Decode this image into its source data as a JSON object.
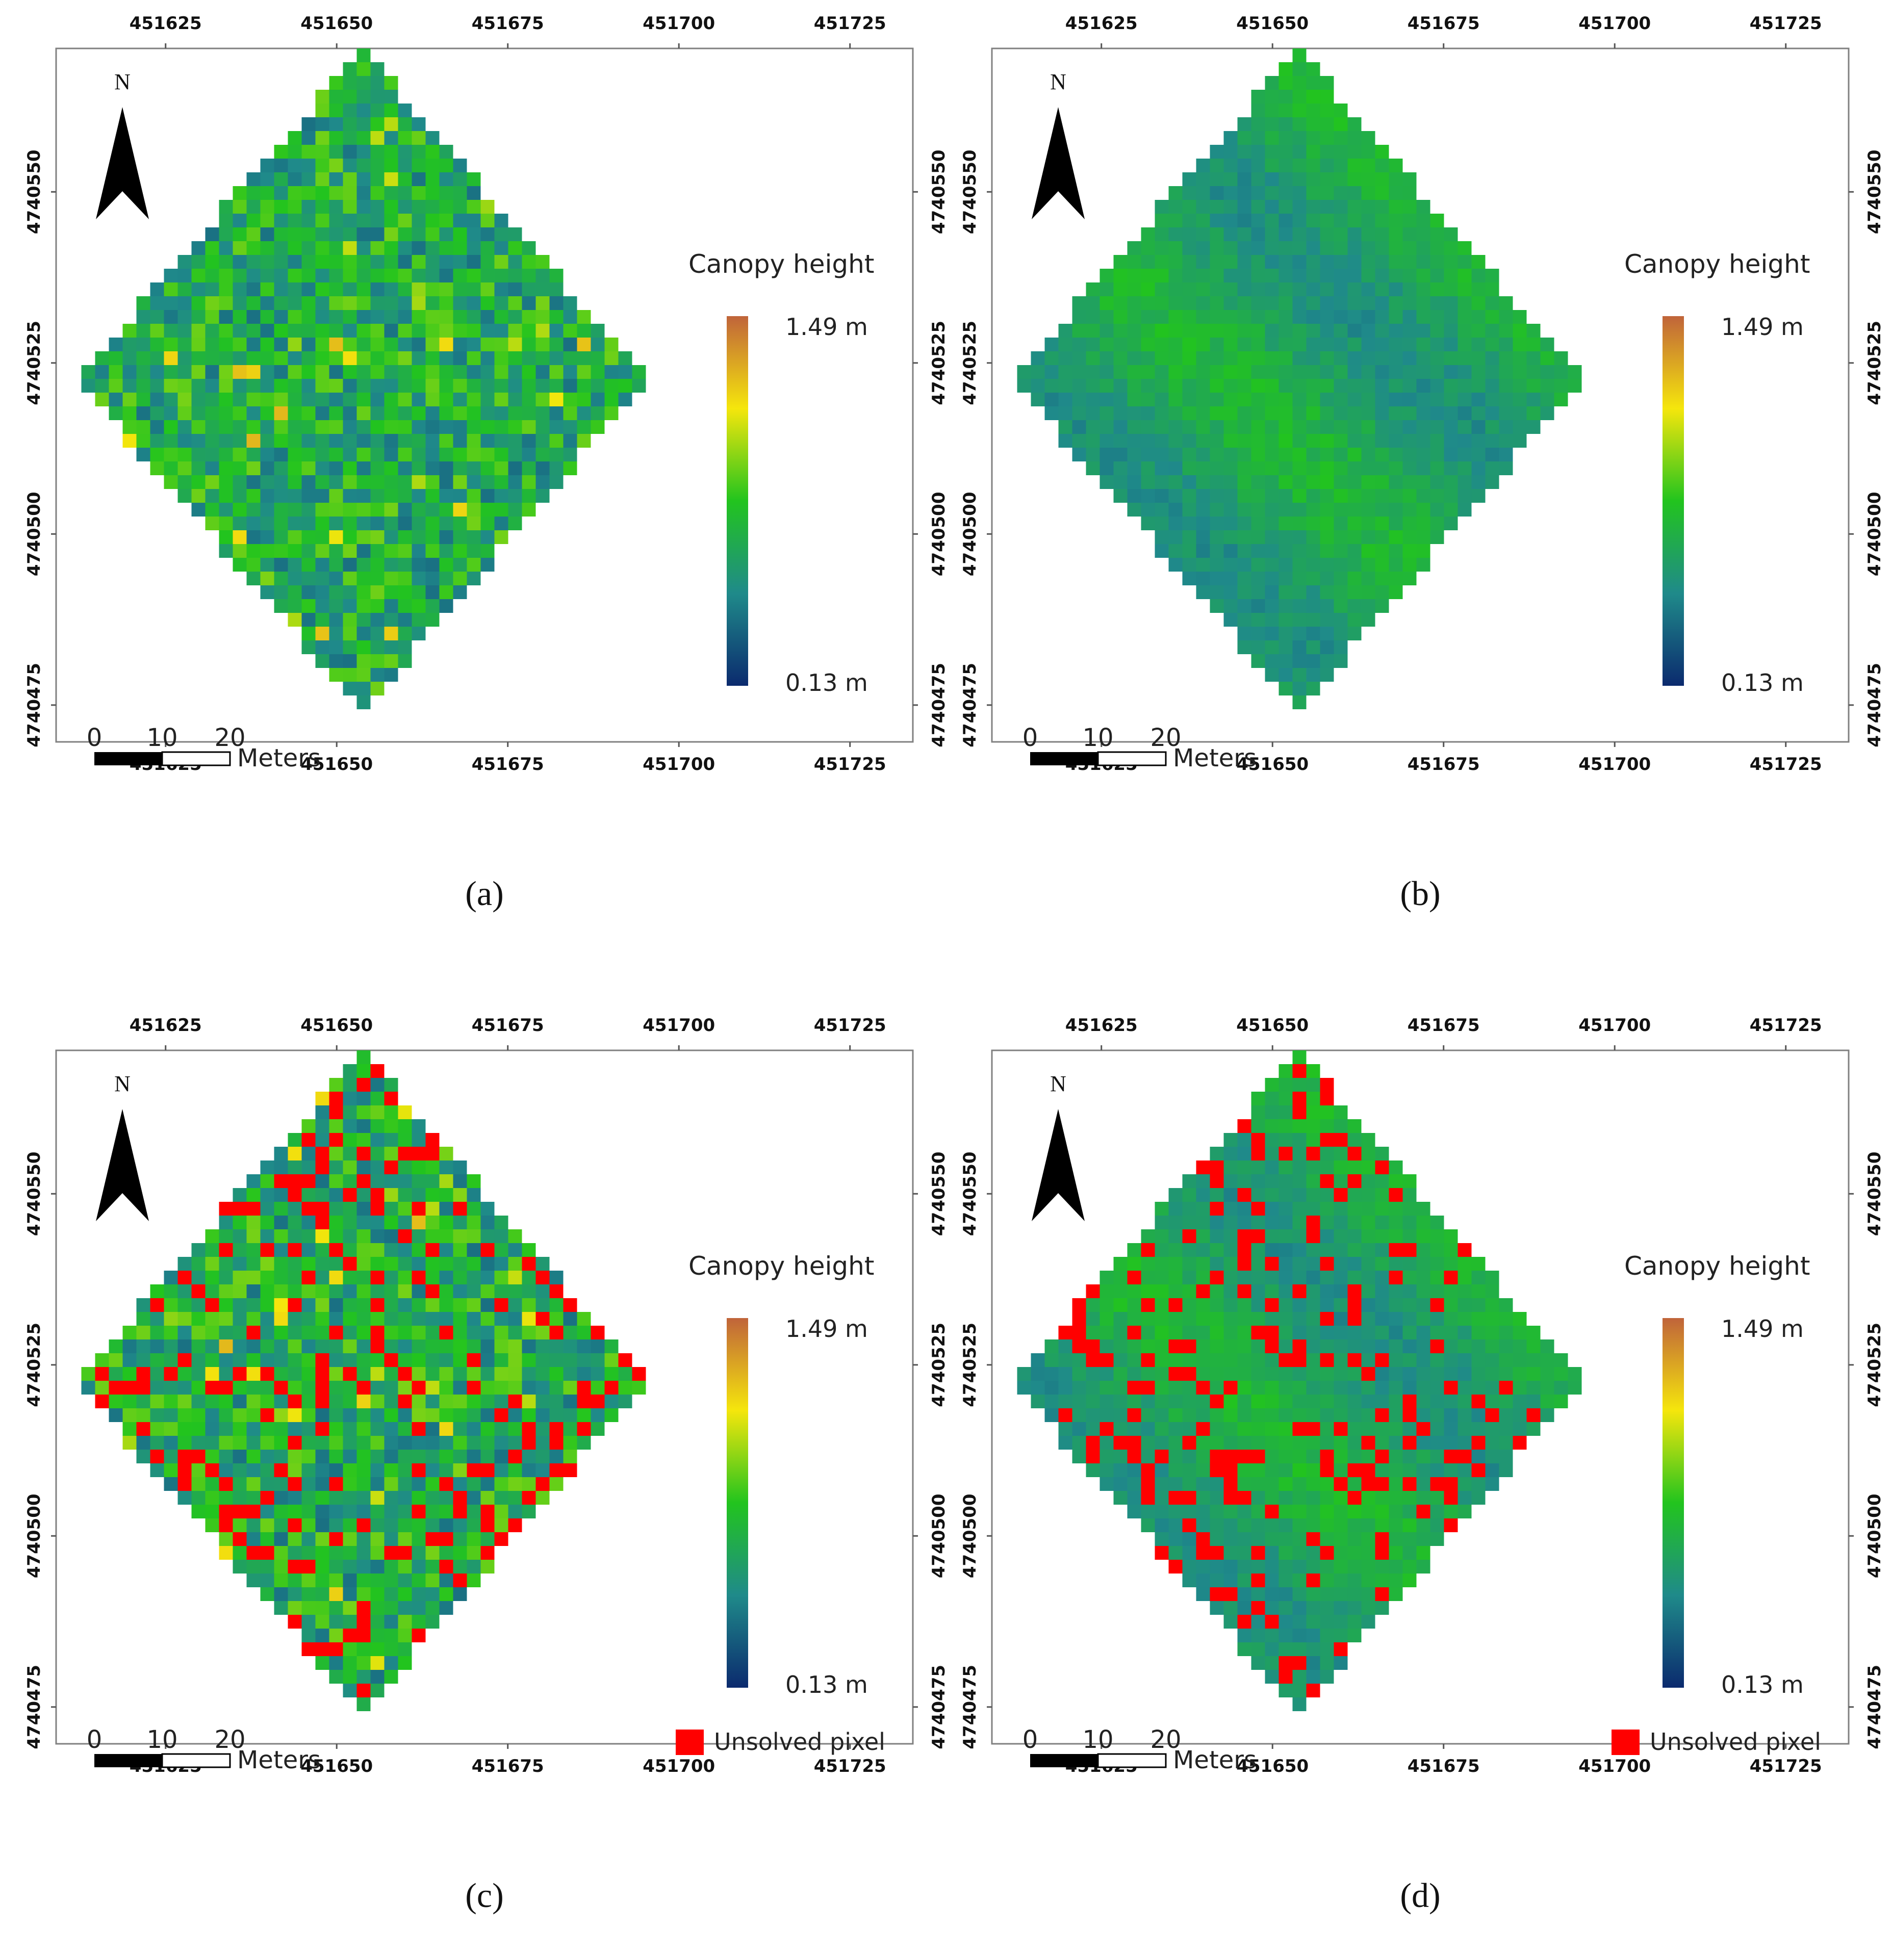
{
  "figure": {
    "panels": [
      {
        "id": "a",
        "caption": "(a)",
        "x_ticks": [
          "451625",
          "451650",
          "451675",
          "451700",
          "451725"
        ],
        "y_ticks": [
          "4740550",
          "4740525",
          "4740500",
          "4740475"
        ],
        "north_label": "N",
        "legend_title": "Canopy height",
        "legend_max": "1.49 m",
        "legend_min": "0.13 m",
        "scale_labels": [
          "0",
          "10",
          "20"
        ],
        "scale_unit": "Meters",
        "unsolved_label": "",
        "map": {
          "extent_x": [
            451609,
            451696
          ],
          "extent_y": [
            4740473,
            4740565
          ],
          "dominant": "mixed green / teal",
          "unsolved_fraction": 0
        }
      },
      {
        "id": "b",
        "caption": "(b)",
        "x_ticks": [
          "451625",
          "451650",
          "451675",
          "451700",
          "451725"
        ],
        "y_ticks": [
          "4740550",
          "4740525",
          "4740500",
          "4740475"
        ],
        "north_label": "N",
        "legend_title": "Canopy height",
        "legend_max": "1.49 m",
        "legend_min": "0.13 m",
        "scale_labels": [
          "0",
          "10",
          "20"
        ],
        "scale_unit": "Meters",
        "unsolved_label": "",
        "map": {
          "extent_x": [
            451609,
            451696
          ],
          "extent_y": [
            4740473,
            4740565
          ],
          "dominant": "smooth green",
          "unsolved_fraction": 0
        }
      },
      {
        "id": "c",
        "caption": "(c)",
        "x_ticks": [
          "451625",
          "451650",
          "451675",
          "451700",
          "451725"
        ],
        "y_ticks": [
          "4740550",
          "4740525",
          "4740500",
          "4740475"
        ],
        "north_label": "N",
        "legend_title": "Canopy height",
        "legend_max": "1.49 m",
        "legend_min": "0.13 m",
        "scale_labels": [
          "0",
          "10",
          "20"
        ],
        "scale_unit": "Meters",
        "unsolved_label": "Unsolved pixel",
        "map": {
          "extent_x": [
            451609,
            451696
          ],
          "extent_y": [
            4740473,
            4740565
          ],
          "dominant": "mixed green / teal",
          "unsolved_fraction": 0.15
        }
      },
      {
        "id": "d",
        "caption": "(d)",
        "x_ticks": [
          "451625",
          "451650",
          "451675",
          "451700",
          "451725"
        ],
        "y_ticks": [
          "4740550",
          "4740525",
          "4740500",
          "4740475"
        ],
        "north_label": "N",
        "legend_title": "Canopy height",
        "legend_max": "1.49 m",
        "legend_min": "0.13 m",
        "scale_labels": [
          "0",
          "10",
          "20"
        ],
        "scale_unit": "Meters",
        "unsolved_label": "Unsolved pixel",
        "map": {
          "extent_x": [
            451609,
            451696
          ],
          "extent_y": [
            4740473,
            4740565
          ],
          "dominant": "smooth green",
          "unsolved_fraction": 0.17
        }
      }
    ],
    "colors": {
      "ramp": [
        "#0b2a6e",
        "#1f8a8a",
        "#22c41e",
        "#f5e60c",
        "#c0643a"
      ],
      "unsolved": "#ff0000",
      "frame": "#808080"
    }
  }
}
